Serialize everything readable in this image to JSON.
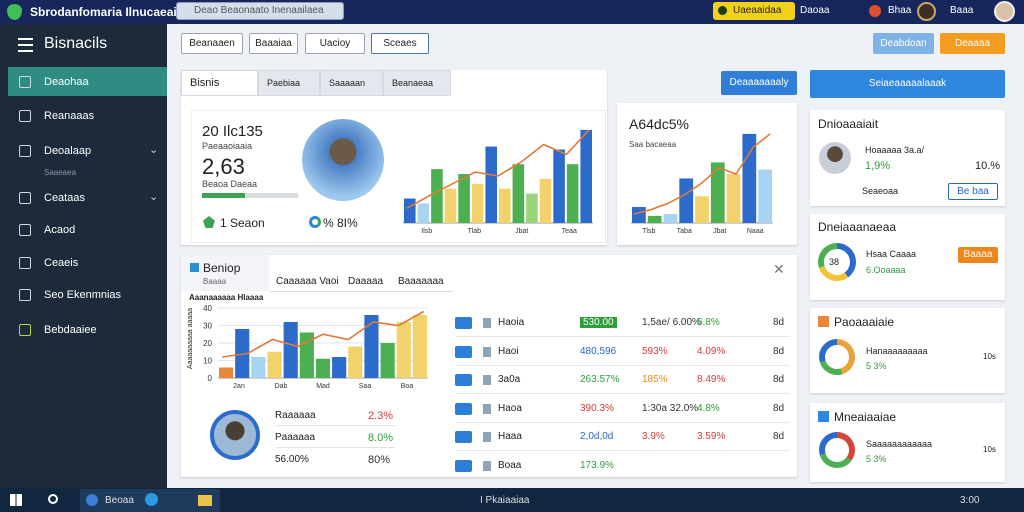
{
  "topbar": {
    "app_title": "Sbrodanfomaria Ilnucaeais",
    "search": "Deao Beaonaato Inenaailaea",
    "badge": "Uaeaaidaa",
    "status": "Daoaa",
    "notice": "Bhaa",
    "user": "Baaa"
  },
  "sidebar": {
    "title": "Bisnacils",
    "items": [
      "Deaohaa",
      "Reanaaas",
      "Deoalaap",
      "Ceataas",
      "Acaod",
      "Ceaeis",
      "Seo Ekenmnias",
      "Bebdaaiee"
    ],
    "subitem": "Saaeaea"
  },
  "toolbar": {
    "filters": [
      "Beanaaen",
      "Baaaiaa",
      "Uacioy"
    ],
    "dropdown": "Sceaes",
    "actions": [
      "Deabdoan",
      "Deaaaa"
    ],
    "primary": "Deaaaaaaaly",
    "side_button": "Seiaeaaaaalaaak"
  },
  "overview": {
    "tabs": [
      "Bisnis",
      "Paebiaa",
      "Saaaaan",
      "Beanaeaa"
    ],
    "headline": "20 Ilc135",
    "label": "Paeaaoiaaia",
    "value": "2,63",
    "sublabel": "Beaoa Daeaa",
    "progress": 45,
    "stat1": "1 Seaon",
    "stat2": "% 8I%",
    "chart": {
      "ylim": [
        0,
        100
      ],
      "bars": [
        25,
        20,
        55,
        35,
        50,
        40,
        78,
        35,
        60,
        30,
        45,
        75,
        60,
        95
      ],
      "bar_colors": [
        "#2c6bc9",
        "#a9d3f2",
        "#4caf50",
        "#f2d36b",
        "#4caf50",
        "#f2d36b",
        "#2c6bc9",
        "#f2d36b",
        "#4caf50",
        "#9ad47a",
        "#f2d36b",
        "#2c6bc9",
        "#4caf50",
        "#2c6bc9"
      ],
      "line": [
        15,
        28,
        40,
        52,
        48,
        62,
        80,
        70,
        95
      ],
      "line_color": "#e07a3a",
      "labels": [
        "Ilsb",
        "Tlab",
        "Jbat",
        "Teaa"
      ]
    }
  },
  "growth": {
    "value": "A64dc5%",
    "label": "Saa bacaeaa",
    "chart": {
      "ylim": [
        0,
        110
      ],
      "bars": [
        18,
        8,
        10,
        50,
        30,
        68,
        55,
        100,
        60
      ],
      "bar_colors": [
        "#2c6bc9",
        "#4caf50",
        "#a9d3f2",
        "#2c6bc9",
        "#f2d36b",
        "#4caf50",
        "#f2d36b",
        "#2c6bc9",
        "#a9d3f2"
      ],
      "line": [
        10,
        15,
        22,
        32,
        45,
        62,
        55,
        85,
        100
      ],
      "line_color": "#e07a3a",
      "labels": [
        "Tlsb",
        "Taba",
        "Jbat",
        "Naaa"
      ]
    }
  },
  "report": {
    "title": "Beniop",
    "subtitle": "Baaaa",
    "tabs": [
      "Caaaaaa Vaoi",
      "Daaaaa",
      "Baaaaaaa"
    ],
    "chart_title": "Aaanaaaaaa Hlaaaa",
    "y_label": "Aaaaaaaaaa aaaaa",
    "chart": {
      "ylim": [
        0,
        40
      ],
      "yticks": [
        0,
        10,
        20,
        30,
        40
      ],
      "bars": [
        6,
        28,
        12,
        15,
        32,
        26,
        11,
        12,
        18,
        36,
        20,
        32,
        36
      ],
      "bar_colors": [
        "#e8873a",
        "#2c6bc9",
        "#a9d3f2",
        "#f2d36b",
        "#2c6bc9",
        "#4caf50",
        "#4caf50",
        "#2c6bc9",
        "#f2d36b",
        "#2c6bc9",
        "#4caf50",
        "#f2d36b",
        "#f2d36b"
      ],
      "line": [
        12,
        14,
        22,
        18,
        25,
        22,
        32,
        30,
        38
      ],
      "line_color": "#e07a3a",
      "labels": [
        "2an",
        "Dab",
        "Mad",
        "Saa",
        "Boa"
      ]
    },
    "people": [
      {
        "label": "Raaaaaa",
        "value": "2.3%",
        "color": "#d63a3a"
      },
      {
        "label": "Paaaaaa",
        "value": "8.0%",
        "color": "#2e9d3c"
      },
      {
        "label": "56.00%",
        "value": "80%",
        "color": "#333333"
      }
    ],
    "rows": [
      {
        "name": "Haoia",
        "cells": [
          {
            "text": "530.00",
            "color": "#2e9d3c",
            "box": true
          },
          {
            "text": "1,5ae/ 6.00%",
            "color": "#333333"
          },
          {
            "text": "6.8%",
            "color": "#2e9d3c"
          },
          {
            "text": "8d",
            "color": "#333333"
          }
        ]
      },
      {
        "name": "Haoi",
        "cells": [
          {
            "text": "480,596",
            "color": "#2567c4"
          },
          {
            "text": "593%",
            "color": "#d63a3a"
          },
          {
            "text": "4.09%",
            "color": "#d63a3a"
          },
          {
            "text": "8d",
            "color": "#333333"
          }
        ]
      },
      {
        "name": "3a0a",
        "cells": [
          {
            "text": "263.57%",
            "color": "#2e9d3c"
          },
          {
            "text": "185%",
            "color": "#e88a1a"
          },
          {
            "text": "8.49%",
            "color": "#d63a3a"
          },
          {
            "text": "8d",
            "color": "#333333"
          }
        ]
      },
      {
        "name": "Haoa",
        "cells": [
          {
            "text": "390.3%",
            "color": "#d63a3a"
          },
          {
            "text": "1:30a 32.0%",
            "color": "#333333"
          },
          {
            "text": "4.8%",
            "color": "#2e9d3c"
          },
          {
            "text": "8d",
            "color": "#333333"
          }
        ]
      },
      {
        "name": "Haaa",
        "cells": [
          {
            "text": "2,0d,0d",
            "color": "#2567c4"
          },
          {
            "text": "3.9%",
            "color": "#d63a3a"
          },
          {
            "text": "3.59%",
            "color": "#d63a3a"
          },
          {
            "text": "8d",
            "color": "#333333"
          }
        ]
      },
      {
        "name": "Boaa",
        "cells": [
          {
            "text": "173.9%",
            "color": "#2e9d3c"
          }
        ]
      }
    ]
  },
  "cards": {
    "profile": {
      "title": "Dnioaaaiait",
      "name": "Hoaaaaa 3a.a/",
      "value": "1,9%",
      "side": "10.%",
      "footer": "Seaeoaa",
      "button": "Be baa"
    },
    "summary": {
      "title": "Dneiaaanaeaa",
      "label": "Hsaa Caaaa",
      "value": "6.Ooaaaa",
      "button": "Baaaa",
      "center": "38",
      "donut": [
        40,
        30,
        30
      ],
      "donut_colors": [
        "#2c6bc9",
        "#f2c43a",
        "#4caf50"
      ]
    },
    "metrics": [
      {
        "title": "Paoaaaiaie",
        "icon_color": "#e8873a",
        "label": "Hanaaaaaaaaa",
        "value": "5 3%",
        "side": "10s",
        "donut": [
          45,
          25,
          30
        ],
        "donut_colors": [
          "#e8a33a",
          "#4caf50",
          "#2c6bc9"
        ]
      },
      {
        "title": "Mneaiaaiae",
        "icon_color": "#2c86de",
        "label": "Saaaaaaaaaaaa",
        "value": "5 3%",
        "side": "10s",
        "donut": [
          35,
          35,
          30
        ],
        "donut_colors": [
          "#d6453a",
          "#4caf50",
          "#2c6bc9"
        ]
      }
    ]
  },
  "taskbar": {
    "app": "Beoaa",
    "center": "I Pkaiaaiaa",
    "clock": "3:00"
  }
}
